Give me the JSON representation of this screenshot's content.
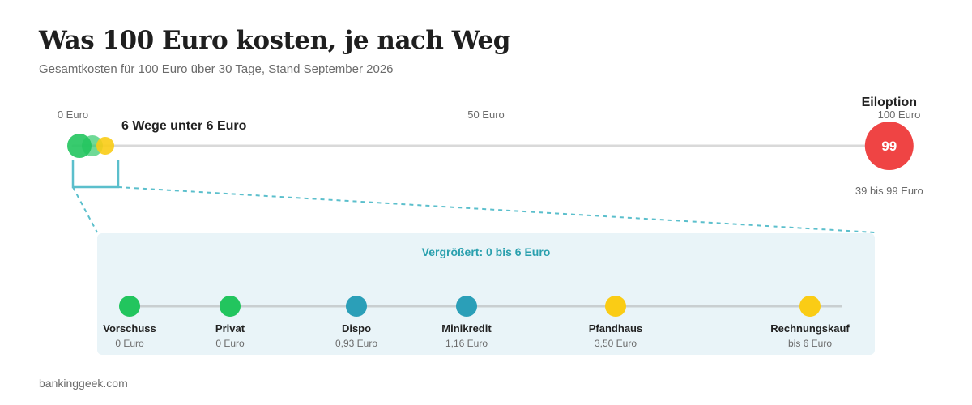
{
  "title": "Was 100 Euro kosten, je nach Weg",
  "subtitle": "Gesamtkosten für 100 Euro über 30 Tage, Stand September 2026",
  "source": "bankinggeek.com",
  "colors": {
    "green": "#22c55e",
    "teal": "#2b9fb8",
    "yellow": "#facc15",
    "red": "#ef4444",
    "axis": "#d9d9d9",
    "zoom_panel": "#e9f4f8",
    "zoom_accent": "#5bbfcc"
  },
  "chart_data": {
    "type": "scatter",
    "main_axis": {
      "xlim": [
        0,
        100
      ],
      "ticks": [
        {
          "value": 0,
          "label": "0 Euro"
        },
        {
          "value": 50,
          "label": "50 Euro"
        },
        {
          "value": 100,
          "label": "100 Euro"
        }
      ],
      "cluster": {
        "range": [
          0,
          6
        ],
        "label": "6 Wege unter 6 Euro"
      },
      "cluster_points": [
        {
          "value": 0,
          "color": "green"
        },
        {
          "value": 2,
          "color": "green"
        },
        {
          "value": 4,
          "color": "yellow"
        }
      ],
      "highlight": {
        "label": "Eiloption",
        "value": 99,
        "value_text": "99",
        "range_text": "39 bis 99 Euro",
        "color": "red"
      }
    },
    "zoom": {
      "title": "Vergrößert: 0 bis 6 Euro",
      "xlim": [
        0,
        6
      ],
      "items": [
        {
          "name": "Vorschuss",
          "value": 0,
          "value_text": "0 Euro",
          "color": "green"
        },
        {
          "name": "Privat",
          "value": 0,
          "value_text": "0 Euro",
          "color": "green"
        },
        {
          "name": "Dispo",
          "value": 0.93,
          "value_text": "0,93 Euro",
          "color": "teal"
        },
        {
          "name": "Minikredit",
          "value": 1.16,
          "value_text": "1,16 Euro",
          "color": "teal"
        },
        {
          "name": "Pfandhaus",
          "value": 3.5,
          "value_text": "3,50 Euro",
          "color": "yellow"
        },
        {
          "name": "Rechnungskauf",
          "value": 6,
          "value_text": "bis 6 Euro",
          "color": "yellow"
        }
      ]
    }
  }
}
